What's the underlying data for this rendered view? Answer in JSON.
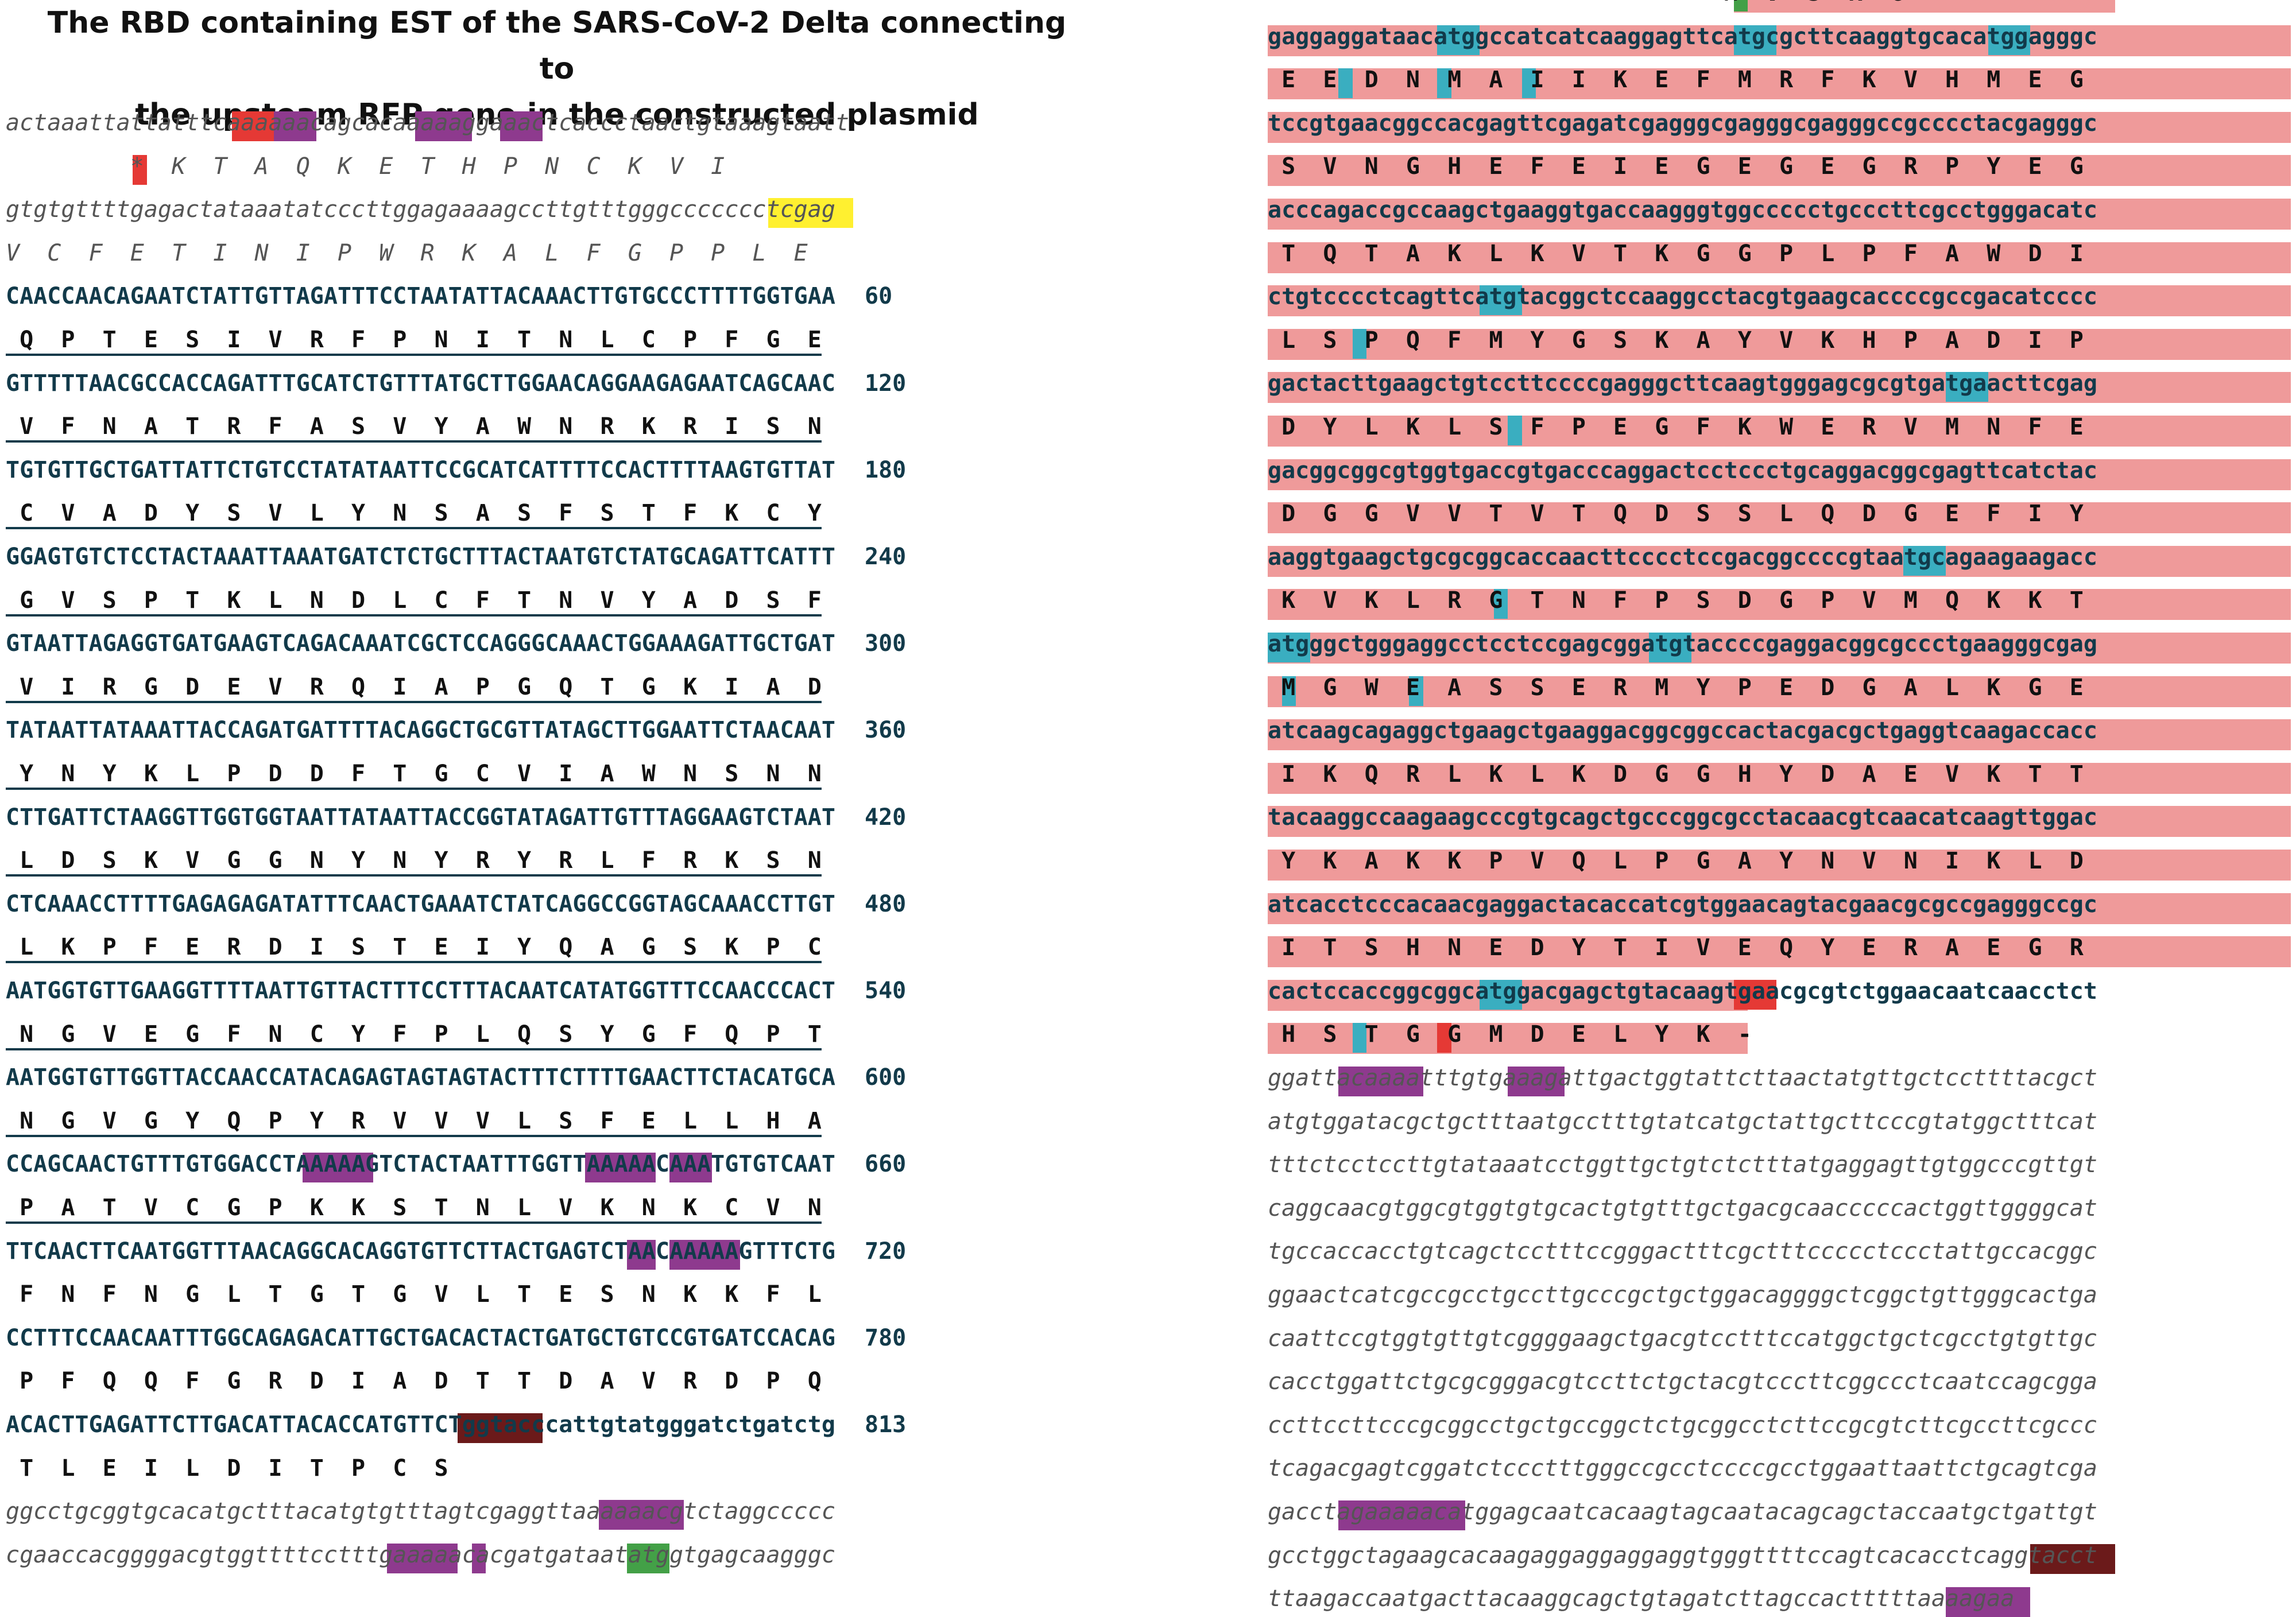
{
  "title_line1": "The RBD containing EST of the SARS-CoV-2 Delta connecting to",
  "title_line2": "the upsteam RFP gene in the constructed plasmid",
  "left": {
    "lines": [
      {
        "t": "actaaattattatttcaaaaaacagcacaaaaaggaaactcaccctaactgtaaagtaatt",
        "c": "it"
      },
      {
        "t": "         *  K  T  A  Q  K  E  T  H  P  N  C  K  V  I",
        "c": "it"
      },
      {
        "t": "gtgtgttttgagactataaatatcccttggagaaaagccttgtttgggccccccctcgag",
        "c": "it"
      },
      {
        "t": "V  C  F  E  T  I  N  I  P  W  R  K  A  L  F  G  P  P  L  E",
        "c": "it"
      },
      {
        "t": "CAACCAACAGAATCTATTGTTAGATTTCCTAATATTACAAACTTGTGCCCTTTTGGTGAA",
        "c": "b",
        "n": "60"
      },
      {
        "t": " Q  P  T  E  S  I  V  R  F  P  N  I  T  N  L  C  P  F  G  E",
        "c": "aa ul"
      },
      {
        "t": "GTTTTTAACGCCACCAGATTTGCATCTGTTTATGCTTGGAACAGGAAGAGAATCAGCAAC",
        "c": "b",
        "n": "120"
      },
      {
        "t": " V  F  N  A  T  R  F  A  S  V  Y  A  W  N  R  K  R  I  S  N",
        "c": "aa ul"
      },
      {
        "t": "TGTGTTGCTGATTATTCTGTCCTATATAATTCCGCATCATTTTCCACTTTTAAGTGTTAT",
        "c": "b",
        "n": "180"
      },
      {
        "t": " C  V  A  D  Y  S  V  L  Y  N  S  A  S  F  S  T  F  K  C  Y",
        "c": "aa ul"
      },
      {
        "t": "GGAGTGTCTCCTACTAAATTAAATGATCTCTGCTTTACTAATGTCTATGCAGATTCATTT",
        "c": "b",
        "n": "240"
      },
      {
        "t": " G  V  S  P  T  K  L  N  D  L  C  F  T  N  V  Y  A  D  S  F",
        "c": "aa ul"
      },
      {
        "t": "GTAATTAGAGGTGATGAAGTCAGACAAATCGCTCCAGGGCAAACTGGAAAGATTGCTGAT",
        "c": "b",
        "n": "300"
      },
      {
        "t": " V  I  R  G  D  E  V  R  Q  I  A  P  G  Q  T  G  K  I  A  D",
        "c": "aa ul"
      },
      {
        "t": "TATAATTATAAATTACCAGATGATTTTACAGGCTGCGTTATAGCTTGGAATTCTAACAAT",
        "c": "b",
        "n": "360"
      },
      {
        "t": " Y  N  Y  K  L  P  D  D  F  T  G  C  V  I  A  W  N  S  N  N",
        "c": "aa ul"
      },
      {
        "t": "CTTGATTCTAAGGTTGGTGGTAATTATAATTACCGGTATAGATTGTTTAGGAAGTCTAAT",
        "c": "b",
        "n": "420"
      },
      {
        "t": " L  D  S  K  V  G  G  N  Y  N  Y  R  Y  R  L  F  R  K  S  N",
        "c": "aa ul"
      },
      {
        "t": "CTCAAACCTTTTGAGAGAGATATTTCAACTGAAATCTATCAGGCCGGTAGCAAACCTTGT",
        "c": "b",
        "n": "480"
      },
      {
        "t": " L  K  P  F  E  R  D  I  S  T  E  I  Y  Q  A  G  S  K  P  C",
        "c": "aa ul"
      },
      {
        "t": "AATGGTGTTGAAGGTTTTAATTGTTACTTTCCTTTACAATCATATGGTTTCCAACCCACT",
        "c": "b",
        "n": "540"
      },
      {
        "t": " N  G  V  E  G  F  N  C  Y  F  P  L  Q  S  Y  G  F  Q  P  T",
        "c": "aa ul"
      },
      {
        "t": "AATGGTGTTGGTTACCAACCATACAGAGTAGTAGTACTTTCTTTTGAACTTCTACATGCA",
        "c": "b",
        "n": "600"
      },
      {
        "t": " N  G  V  G  Y  Q  P  Y  R  V  V  V  L  S  F  E  L  L  H  A",
        "c": "aa ul"
      },
      {
        "t": "CCAGCAACTGTTTGTGGACCTAAAAAGTCTACTAATTTGGTTAAAAACAAATGTGTCAAT",
        "c": "b",
        "n": "660"
      },
      {
        "t": " P  A  T  V  C  G  P  K  K  S  T  N  L  V  K  N  K  C  V  N",
        "c": "aa ul"
      },
      {
        "t": "TTCAACTTCAATGGTTTAACAGGCACAGGTGTTCTTACTGAGTCTAACAAAAAGTTTCTG",
        "c": "b",
        "n": "720"
      },
      {
        "t": " F  N  F  N  G  L  T  G  T  G  V  L  T  E  S  N  K  K  F  L",
        "c": "aa"
      },
      {
        "t": "CCTTTCCAACAATTTGGCAGAGACATTGCTGACACTACTGATGCTGTCCGTGATCCACAG",
        "c": "b",
        "n": "780"
      },
      {
        "t": " P  F  Q  Q  F  G  R  D  I  A  D  T  T  D  A  V  R  D  P  Q",
        "c": "aa"
      },
      {
        "t": "ACACTTGAGATTCTTGACATTACACCATGTTCTggtacccattgtatgggatctgatctg",
        "c": "b",
        "n": "813"
      },
      {
        "t": " T  L  E  I  L  D  I  T  P  C  S",
        "c": "aa"
      },
      {
        "t": "ggcctgcggtgcacatgctttacatgtgtttagtcgaggttaaaaaacgtctaggccccc",
        "c": "it"
      },
      {
        "t": "cgaaccacggggacgtggttttcctttgaaaaacacgatgataatatggtgagcaagggc",
        "c": "it"
      }
    ]
  },
  "right": {
    "lines": [
      {
        "t": "                                 M  V  S  K  G",
        "c": "aa"
      },
      {
        "t": "gaggaggataacatggccatcatcaaggagttcatgcgcttcaaggtgcacatggagggc",
        "c": "b"
      },
      {
        "t": " E  E  D  N  M  A  I  I  K  E  F  M  R  F  K  V  H  M  E  G",
        "c": "aa"
      },
      {
        "t": "tccgtgaacggccacgagttcgagatcgagggcgagggcgagggccgcccctacgagggc",
        "c": "b"
      },
      {
        "t": " S  V  N  G  H  E  F  E  I  E  G  E  G  E  G  R  P  Y  E  G",
        "c": "aa"
      },
      {
        "t": "acccagaccgccaagctgaaggtgaccaagggtggccccctgcccttcgcctgggacatc",
        "c": "b"
      },
      {
        "t": " T  Q  T  A  K  L  K  V  T  K  G  G  P  L  P  F  A  W  D  I",
        "c": "aa"
      },
      {
        "t": "ctgtcccctcagttcatgtacggctccaaggcctacgtgaagcaccccgccgacatcccc",
        "c": "b"
      },
      {
        "t": " L  S  P  Q  F  M  Y  G  S  K  A  Y  V  K  H  P  A  D  I  P",
        "c": "aa"
      },
      {
        "t": "gactacttgaagctgtccttccccgagggcttcaagtgggagcgcgtgatgaacttcgag",
        "c": "b"
      },
      {
        "t": " D  Y  L  K  L  S  F  P  E  G  F  K  W  E  R  V  M  N  F  E",
        "c": "aa"
      },
      {
        "t": "gacggcggcgtggtgaccgtgacccaggactcctccctgcaggacggcgagttcatctac",
        "c": "b"
      },
      {
        "t": " D  G  G  V  V  T  V  T  Q  D  S  S  L  Q  D  G  E  F  I  Y",
        "c": "aa"
      },
      {
        "t": "aaggtgaagctgcgcggcaccaacttcccctccgacggccccgtaatgcagaagaagacc",
        "c": "b"
      },
      {
        "t": " K  V  K  L  R  G  T  N  F  P  S  D  G  P  V  M  Q  K  K  T",
        "c": "aa"
      },
      {
        "t": "atgggctgggaggcctcctccgagcggatgtaccccgaggacggcgccctgaagggcgag",
        "c": "b"
      },
      {
        "t": " M  G  W  E  A  S  S  E  R  M  Y  P  E  D  G  A  L  K  G  E",
        "c": "aa"
      },
      {
        "t": "atcaagcagaggctgaagctgaaggacggcggccactacgacgctgaggtcaagaccacc",
        "c": "b"
      },
      {
        "t": " I  K  Q  R  L  K  L  K  D  G  G  H  Y  D  A  E  V  K  T  T",
        "c": "aa"
      },
      {
        "t": "tacaaggccaagaagcccgtgcagctgcccggcgcctacaacgtcaacatcaagttggac",
        "c": "b"
      },
      {
        "t": " Y  K  A  K  K  P  V  Q  L  P  G  A  Y  N  V  N  I  K  L  D",
        "c": "aa"
      },
      {
        "t": "atcacctcccacaacgaggactacaccatcgtggaacagtacgaacgcgccgagggccgc",
        "c": "b"
      },
      {
        "t": " I  T  S  H  N  E  D  Y  T  I  V  E  Q  Y  E  R  A  E  G  R",
        "c": "aa"
      },
      {
        "t": "cactccaccggcggcatggacgagctgtacaagtgaacgcgtctggaacaatcaacctct",
        "c": "b"
      },
      {
        "t": " H  S  T  G  G  M  D  E  L  Y  K  -",
        "c": "aa"
      },
      {
        "t": "ggattacaaaatttgtgaaagattgactggtattcttaactatgttgctccttttacgct",
        "c": "it"
      },
      {
        "t": "atgtggatacgctgctttaatgcctttgtatcatgctattgcttcccgtatggctttcat",
        "c": "it"
      },
      {
        "t": "tttctcctccttgtataaatcctggttgctgtctctttatgaggagttgtggcccgttgt",
        "c": "it"
      },
      {
        "t": "caggcaacgtggcgtggtgtgcactgtgtttgctgacgcaacccccactggttggggcat",
        "c": "it"
      },
      {
        "t": "tgccaccacctgtcagctcctttccgggactttcgctttccccctccctattgccacggc",
        "c": "it"
      },
      {
        "t": "ggaactcatcgccgcctgccttgcccgctgctggacaggggctcggctgttgggcactga",
        "c": "it"
      },
      {
        "t": "caattccgtggtgttgtcggggaagctgacgtcctttccatggctgctcgcctgtgttgc",
        "c": "it"
      },
      {
        "t": "cacctggattctgcgcgggacgtccttctgctacgtcccttcggccctcaatccagcgga",
        "c": "it"
      },
      {
        "t": "ccttccttcccgcggcctgctgccggctctgcggcctcttccgcgtcttcgccttcgccc",
        "c": "it"
      },
      {
        "t": "tcagacgagtcggatctccctttgggccgcctccccgcctggaattaattctgcagtcga",
        "c": "it"
      },
      {
        "t": "gacctagaaaaacatggagcaatcacaagtagcaatacagcagctaccaatgctgattgt",
        "c": "it"
      },
      {
        "t": "gcctggctagaagcacaagaggaggaggaggtgggttttccagtcacacctcaggtacct",
        "c": "it"
      },
      {
        "t": "ttaagaccaatgacttacaaggcagctgtagatcttagccactttttaaaagaa",
        "c": "it"
      }
    ]
  },
  "colors": {
    "band": "#ef9a9a",
    "stop": "#e53935",
    "polyA": "#8e3a8e",
    "xhoI": "#fff030",
    "start": "#43a047",
    "met": "#3aaec0",
    "kpnI": "#6b1a1a"
  }
}
